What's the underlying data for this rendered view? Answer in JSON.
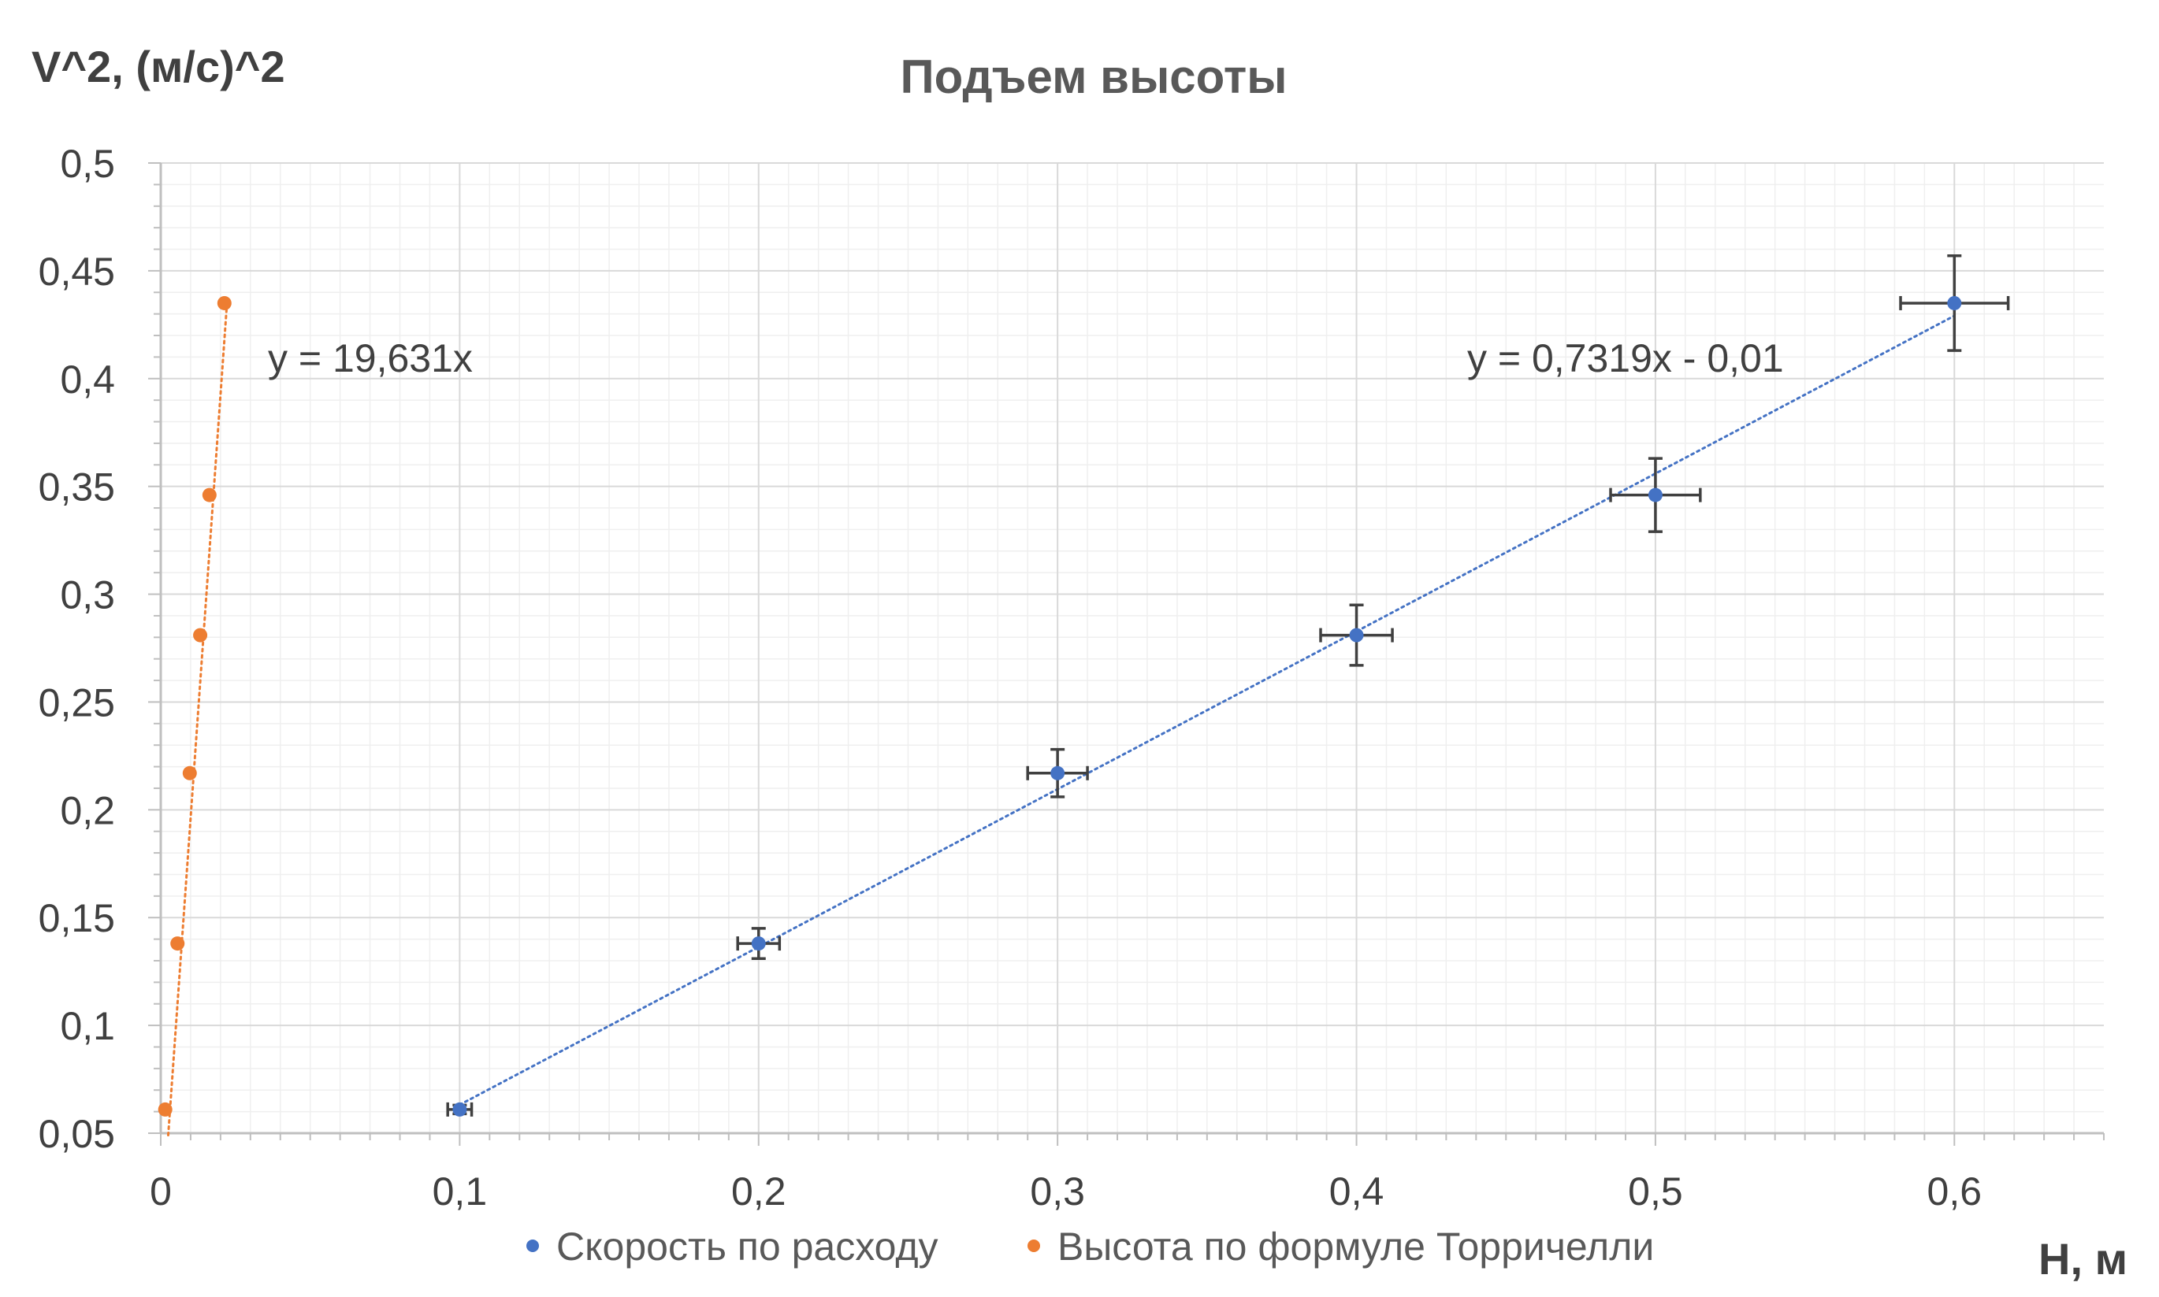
{
  "chart_data": {
    "type": "scatter",
    "title": "Подъем высоты",
    "xlabel": "H, м",
    "ylabel": "V^2, (м/с)^2",
    "xlim": [
      0,
      0.65
    ],
    "ylim": [
      0.05,
      0.5
    ],
    "x_ticks": [
      "0",
      "0,1",
      "0,2",
      "0,3",
      "0,4",
      "0,5",
      "0,6"
    ],
    "y_ticks": [
      "0,05",
      "0,1",
      "0,15",
      "0,2",
      "0,25",
      "0,3",
      "0,35",
      "0,4",
      "0,45",
      "0,5"
    ],
    "grid": true,
    "legend_position": "bottom",
    "series": [
      {
        "name": "Скорость по расходу",
        "color": "#4472C4",
        "points": [
          {
            "x": 0.1,
            "y": 0.061,
            "xerr": 0.004,
            "yerr": 0.002
          },
          {
            "x": 0.2,
            "y": 0.138,
            "xerr": 0.007,
            "yerr": 0.007
          },
          {
            "x": 0.3,
            "y": 0.217,
            "xerr": 0.01,
            "yerr": 0.011
          },
          {
            "x": 0.4,
            "y": 0.281,
            "xerr": 0.012,
            "yerr": 0.014
          },
          {
            "x": 0.5,
            "y": 0.346,
            "xerr": 0.015,
            "yerr": 0.017
          },
          {
            "x": 0.6,
            "y": 0.435,
            "xerr": 0.018,
            "yerr": 0.022
          }
        ],
        "trendline": {
          "slope": 0.7319,
          "intercept": -0.01,
          "x_range": [
            0.1,
            0.6
          ],
          "label": "y = 0,7319x - 0,01"
        }
      },
      {
        "name": "Высота по формуле Торричелли",
        "color": "#ED7D31",
        "points": [
          {
            "x": 0.0015,
            "y": 0.061
          },
          {
            "x": 0.0056,
            "y": 0.138
          },
          {
            "x": 0.0097,
            "y": 0.217
          },
          {
            "x": 0.0132,
            "y": 0.281
          },
          {
            "x": 0.0163,
            "y": 0.346
          },
          {
            "x": 0.0213,
            "y": 0.435
          }
        ],
        "trendline": {
          "slope": 19.631,
          "intercept": 0,
          "x_range": [
            0.0025,
            0.022
          ],
          "label": "y = 19,631x"
        }
      }
    ]
  }
}
